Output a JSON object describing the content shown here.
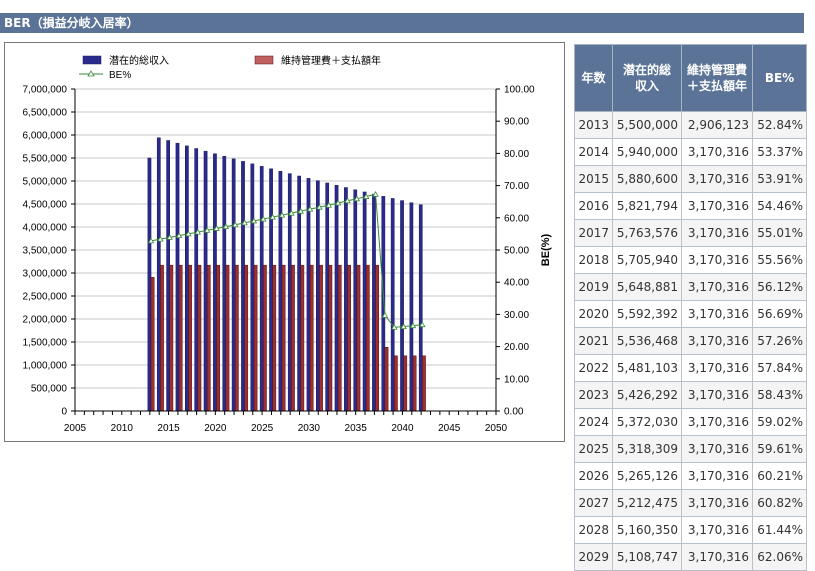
{
  "header": {
    "title": "BER（損益分岐入居率）"
  },
  "chart_data": {
    "type": "bar",
    "series": [
      {
        "name": "潜在的総収入",
        "axis": "left",
        "color": "#2a2a8c",
        "values": [
          [
            2013,
            5500000
          ],
          [
            2014,
            5940000
          ],
          [
            2015,
            5880600
          ],
          [
            2016,
            5821794
          ],
          [
            2017,
            5763576
          ],
          [
            2018,
            5705940
          ],
          [
            2019,
            5648881
          ],
          [
            2020,
            5592392
          ],
          [
            2021,
            5536468
          ],
          [
            2022,
            5481103
          ],
          [
            2023,
            5426292
          ],
          [
            2024,
            5372030
          ],
          [
            2025,
            5318309
          ],
          [
            2026,
            5265126
          ],
          [
            2027,
            5212475
          ],
          [
            2028,
            5160350
          ],
          [
            2029,
            5108747
          ],
          [
            2030,
            5057660
          ],
          [
            2031,
            5007083
          ],
          [
            2032,
            4957012
          ],
          [
            2033,
            4907442
          ],
          [
            2034,
            4858368
          ],
          [
            2035,
            4809784
          ],
          [
            2036,
            4761686
          ],
          [
            2037,
            4714069
          ],
          [
            2038,
            4666928
          ],
          [
            2039,
            4620259
          ],
          [
            2040,
            4574056
          ],
          [
            2041,
            4528315
          ],
          [
            2042,
            4483032
          ]
        ]
      },
      {
        "name": "維持管理費＋支払額年",
        "axis": "left",
        "color": "#a04040",
        "values": [
          [
            2013,
            2906123
          ],
          [
            2014,
            3170316
          ],
          [
            2015,
            3170316
          ],
          [
            2016,
            3170316
          ],
          [
            2017,
            3170316
          ],
          [
            2018,
            3170316
          ],
          [
            2019,
            3170316
          ],
          [
            2020,
            3170316
          ],
          [
            2021,
            3170316
          ],
          [
            2022,
            3170316
          ],
          [
            2023,
            3170316
          ],
          [
            2024,
            3170316
          ],
          [
            2025,
            3170316
          ],
          [
            2026,
            3170316
          ],
          [
            2027,
            3170316
          ],
          [
            2028,
            3170316
          ],
          [
            2029,
            3170316
          ],
          [
            2030,
            3170316
          ],
          [
            2031,
            3170316
          ],
          [
            2032,
            3170316
          ],
          [
            2033,
            3170316
          ],
          [
            2034,
            3170316
          ],
          [
            2035,
            3170316
          ],
          [
            2036,
            3170316
          ],
          [
            2037,
            3170316
          ],
          [
            2038,
            1385000
          ],
          [
            2039,
            1200000
          ],
          [
            2040,
            1200000
          ],
          [
            2041,
            1200000
          ],
          [
            2042,
            1200000
          ]
        ]
      },
      {
        "name": "BE%",
        "axis": "right",
        "type": "line",
        "color": "#3a8a3a",
        "values": [
          [
            2013,
            52.84
          ],
          [
            2014,
            53.37
          ],
          [
            2015,
            53.91
          ],
          [
            2016,
            54.46
          ],
          [
            2017,
            55.01
          ],
          [
            2018,
            55.56
          ],
          [
            2019,
            56.12
          ],
          [
            2020,
            56.69
          ],
          [
            2021,
            57.26
          ],
          [
            2022,
            57.84
          ],
          [
            2023,
            58.43
          ],
          [
            2024,
            59.02
          ],
          [
            2025,
            59.61
          ],
          [
            2026,
            60.21
          ],
          [
            2027,
            60.82
          ],
          [
            2028,
            61.44
          ],
          [
            2029,
            62.06
          ],
          [
            2030,
            62.69
          ],
          [
            2031,
            63.3
          ],
          [
            2032,
            63.9
          ],
          [
            2033,
            64.6
          ],
          [
            2034,
            65.3
          ],
          [
            2035,
            65.9
          ],
          [
            2036,
            66.6
          ],
          [
            2037,
            67.3
          ],
          [
            2038,
            29.7
          ],
          [
            2039,
            26.0
          ],
          [
            2040,
            26.2
          ],
          [
            2041,
            26.5
          ],
          [
            2042,
            26.8
          ]
        ]
      }
    ],
    "x_ticks": [
      "2005",
      "2010",
      "2015",
      "2020",
      "2025",
      "2030",
      "2035",
      "2040",
      "2045",
      "2050"
    ],
    "xlim": [
      2005,
      2050
    ],
    "y_left_ticks": [
      "0",
      "500,000",
      "1,000,000",
      "1,500,000",
      "2,000,000",
      "2,500,000",
      "3,000,000",
      "3,500,000",
      "4,000,000",
      "4,500,000",
      "5,000,000",
      "5,500,000",
      "6,000,000",
      "6,500,000",
      "7,000,000"
    ],
    "ylim_left": [
      0,
      7000000
    ],
    "y_right_ticks": [
      "0.00",
      "10.00",
      "20.00",
      "30.00",
      "40.00",
      "50.00",
      "60.00",
      "70.00",
      "80.00",
      "90.00",
      "100.00"
    ],
    "ylim_right": [
      0,
      100
    ],
    "ylabel_right": "BE(%)",
    "grid": "horizontal",
    "legend": "top-left"
  },
  "table": {
    "headers": [
      "年数",
      "潜在的総収入",
      "維持管理費＋支払額年",
      "BE%"
    ],
    "rows": [
      [
        "2013",
        "5,500,000",
        "2,906,123",
        "52.84%"
      ],
      [
        "2014",
        "5,940,000",
        "3,170,316",
        "53.37%"
      ],
      [
        "2015",
        "5,880,600",
        "3,170,316",
        "53.91%"
      ],
      [
        "2016",
        "5,821,794",
        "3,170,316",
        "54.46%"
      ],
      [
        "2017",
        "5,763,576",
        "3,170,316",
        "55.01%"
      ],
      [
        "2018",
        "5,705,940",
        "3,170,316",
        "55.56%"
      ],
      [
        "2019",
        "5,648,881",
        "3,170,316",
        "56.12%"
      ],
      [
        "2020",
        "5,592,392",
        "3,170,316",
        "56.69%"
      ],
      [
        "2021",
        "5,536,468",
        "3,170,316",
        "57.26%"
      ],
      [
        "2022",
        "5,481,103",
        "3,170,316",
        "57.84%"
      ],
      [
        "2023",
        "5,426,292",
        "3,170,316",
        "58.43%"
      ],
      [
        "2024",
        "5,372,030",
        "3,170,316",
        "59.02%"
      ],
      [
        "2025",
        "5,318,309",
        "3,170,316",
        "59.61%"
      ],
      [
        "2026",
        "5,265,126",
        "3,170,316",
        "60.21%"
      ],
      [
        "2027",
        "5,212,475",
        "3,170,316",
        "60.82%"
      ],
      [
        "2028",
        "5,160,350",
        "3,170,316",
        "61.44%"
      ],
      [
        "2029",
        "5,108,747",
        "3,170,316",
        "62.06%"
      ]
    ]
  }
}
